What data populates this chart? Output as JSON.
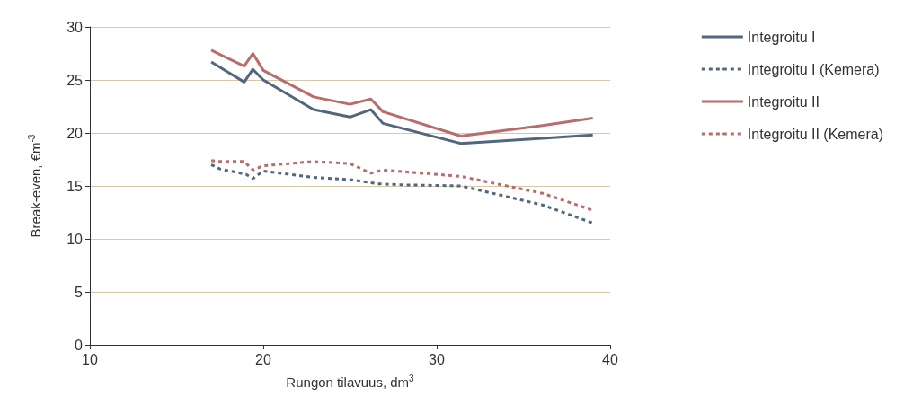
{
  "chart_data": {
    "type": "line",
    "xlabel": "Rungon tilavuus, dm$^{3}$",
    "ylabel": "Break-even, €m$^{-3}$",
    "xlim": [
      10,
      40
    ],
    "xticks": [
      10,
      20,
      30,
      40
    ],
    "ylim": [
      0,
      30
    ],
    "yticks": [
      0,
      5,
      10,
      15,
      20,
      25,
      30
    ],
    "grid": "y",
    "legend": "right",
    "marker": "none",
    "series": [
      {
        "name": "Integroitu I",
        "color": "#52677d",
        "line_style": "solid",
        "x": [
          17.0,
          18.9,
          19.4,
          20.0,
          22.9,
          25.0,
          26.2,
          26.9,
          31.4,
          36.1,
          39.0
        ],
        "values": [
          26.7,
          24.8,
          26.0,
          25.0,
          22.2,
          21.5,
          22.2,
          20.9,
          19.0,
          19.5,
          19.8
        ]
      },
      {
        "name": "Integroitu I (Kemera)",
        "color": "#52677d",
        "line_style": "dashed",
        "x": [
          17.0,
          17.5,
          19.0,
          19.4,
          20.0,
          22.9,
          25.0,
          26.6,
          28.1,
          31.4,
          36.1,
          39.0
        ],
        "values": [
          17.0,
          16.6,
          16.1,
          15.7,
          16.4,
          15.8,
          15.6,
          15.2,
          15.1,
          15.0,
          13.2,
          11.5
        ]
      },
      {
        "name": "Integroitu II",
        "color": "#b96c6c",
        "line_style": "solid",
        "x": [
          17.0,
          18.9,
          19.4,
          20.0,
          22.9,
          25.0,
          26.2,
          26.9,
          31.4,
          36.1,
          39.0
        ],
        "values": [
          27.8,
          26.3,
          27.5,
          25.9,
          23.4,
          22.7,
          23.2,
          22.0,
          19.7,
          20.7,
          21.4
        ]
      },
      {
        "name": "Integroitu II (Kemera)",
        "color": "#b96c6c",
        "line_style": "dashed",
        "x": [
          17.0,
          17.5,
          18.9,
          19.4,
          20.0,
          22.9,
          25.0,
          26.2,
          26.9,
          31.4,
          36.1,
          39.0
        ],
        "values": [
          17.4,
          17.3,
          17.3,
          16.5,
          16.9,
          17.3,
          17.1,
          16.2,
          16.5,
          15.9,
          14.3,
          12.7
        ]
      }
    ]
  }
}
